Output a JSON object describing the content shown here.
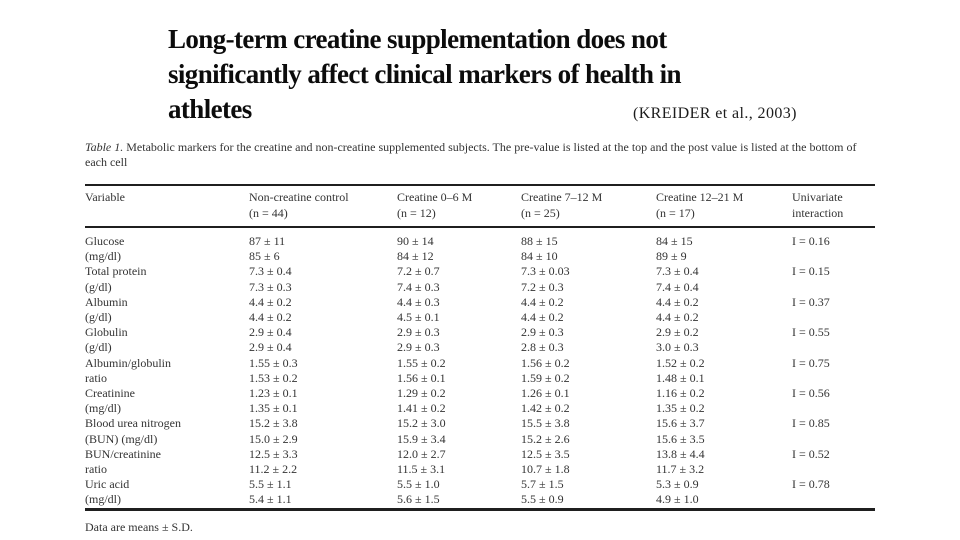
{
  "slide": {
    "title_lines": [
      "Long-term creatine supplementation does not",
      "significantly affect clinical markers of health in",
      "athletes"
    ],
    "citation": "(KREIDER et al., 2003)"
  },
  "table": {
    "caption_label": "Table 1.",
    "caption_text": "Metabolic markers for the creatine and non-creatine supplemented subjects. The pre-value is listed at the top and the post value is listed at the bottom of each cell",
    "columns": [
      {
        "lines": [
          "Variable"
        ]
      },
      {
        "lines": [
          "Non-creatine control",
          "(n = 44)"
        ]
      },
      {
        "lines": [
          "Creatine 0–6 M",
          "(n = 12)"
        ]
      },
      {
        "lines": [
          "Creatine 7–12 M",
          "(n = 25)"
        ]
      },
      {
        "lines": [
          "Creatine 12–21 M",
          "(n = 17)"
        ]
      },
      {
        "lines": [
          "Univariate",
          "interaction"
        ]
      }
    ],
    "rows": [
      {
        "cells": [
          [
            "Glucose",
            "(mg/dl)"
          ],
          [
            "87 ± 11",
            "85 ± 6"
          ],
          [
            "90 ± 14",
            "84 ± 12"
          ],
          [
            "88 ± 15",
            "84 ± 10"
          ],
          [
            "84 ± 15",
            "89 ± 9"
          ],
          [
            "I = 0.16"
          ]
        ]
      },
      {
        "cells": [
          [
            "Total protein",
            "(g/dl)"
          ],
          [
            "7.3 ± 0.4",
            "7.3 ± 0.3"
          ],
          [
            "7.2 ± 0.7",
            "7.4 ± 0.3"
          ],
          [
            "7.3 ± 0.03",
            "7.2 ± 0.3"
          ],
          [
            "7.3 ± 0.4",
            "7.4 ± 0.4"
          ],
          [
            "I = 0.15"
          ]
        ]
      },
      {
        "cells": [
          [
            "Albumin",
            "(g/dl)"
          ],
          [
            "4.4 ± 0.2",
            "4.4 ± 0.2"
          ],
          [
            "4.4 ± 0.3",
            "4.5 ± 0.1"
          ],
          [
            "4.4 ± 0.2",
            "4.4 ± 0.2"
          ],
          [
            "4.4 ± 0.2",
            "4.4 ± 0.2"
          ],
          [
            "I = 0.37"
          ]
        ]
      },
      {
        "cells": [
          [
            "Globulin",
            "(g/dl)"
          ],
          [
            "2.9 ± 0.4",
            "2.9 ± 0.4"
          ],
          [
            "2.9 ± 0.3",
            "2.9 ± 0.3"
          ],
          [
            "2.9 ± 0.3",
            "2.8 ± 0.3"
          ],
          [
            "2.9 ± 0.2",
            "3.0 ± 0.3"
          ],
          [
            "I = 0.55"
          ]
        ]
      },
      {
        "cells": [
          [
            "Albumin/globulin",
            "ratio"
          ],
          [
            "1.55 ± 0.3",
            "1.53 ± 0.2"
          ],
          [
            "1.55 ± 0.2",
            "1.56 ± 0.1"
          ],
          [
            "1.56 ± 0.2",
            "1.59 ± 0.2"
          ],
          [
            "1.52 ± 0.2",
            "1.48 ± 0.1"
          ],
          [
            "I = 0.75"
          ]
        ]
      },
      {
        "cells": [
          [
            "Creatinine",
            "(mg/dl)"
          ],
          [
            "1.23 ± 0.1",
            "1.35 ± 0.1"
          ],
          [
            "1.29 ± 0.2",
            "1.41 ± 0.2"
          ],
          [
            "1.26 ± 0.1",
            "1.42 ± 0.2"
          ],
          [
            "1.16 ± 0.2",
            "1.35 ± 0.2"
          ],
          [
            "I = 0.56"
          ]
        ]
      },
      {
        "cells": [
          [
            "Blood urea nitrogen",
            "(BUN) (mg/dl)"
          ],
          [
            "15.2 ± 3.8",
            "15.0 ± 2.9"
          ],
          [
            "15.2 ± 3.0",
            "15.9 ± 3.4"
          ],
          [
            "15.5 ± 3.8",
            "15.2 ± 2.6"
          ],
          [
            "15.6 ± 3.7",
            "15.6 ± 3.5"
          ],
          [
            "I = 0.85"
          ]
        ]
      },
      {
        "cells": [
          [
            "BUN/creatinine",
            "ratio"
          ],
          [
            "12.5 ± 3.3",
            "11.2 ± 2.2"
          ],
          [
            "12.0 ± 2.7",
            "11.5 ± 3.1"
          ],
          [
            "12.5 ± 3.5",
            "10.7 ± 1.8"
          ],
          [
            "13.8 ± 4.4",
            "11.7 ± 3.2"
          ],
          [
            "I = 0.52"
          ]
        ]
      },
      {
        "cells": [
          [
            "Uric acid",
            "(mg/dl)"
          ],
          [
            "5.5 ± 1.1",
            "5.4 ± 1.1"
          ],
          [
            "5.5 ± 1.0",
            "5.6 ± 1.5"
          ],
          [
            "5.7 ± 1.5",
            "5.5 ± 0.9"
          ],
          [
            "5.3 ± 0.9",
            "4.9 ± 1.0"
          ],
          [
            "I = 0.78"
          ]
        ]
      }
    ],
    "footnote": "Data are means ± S.D."
  }
}
